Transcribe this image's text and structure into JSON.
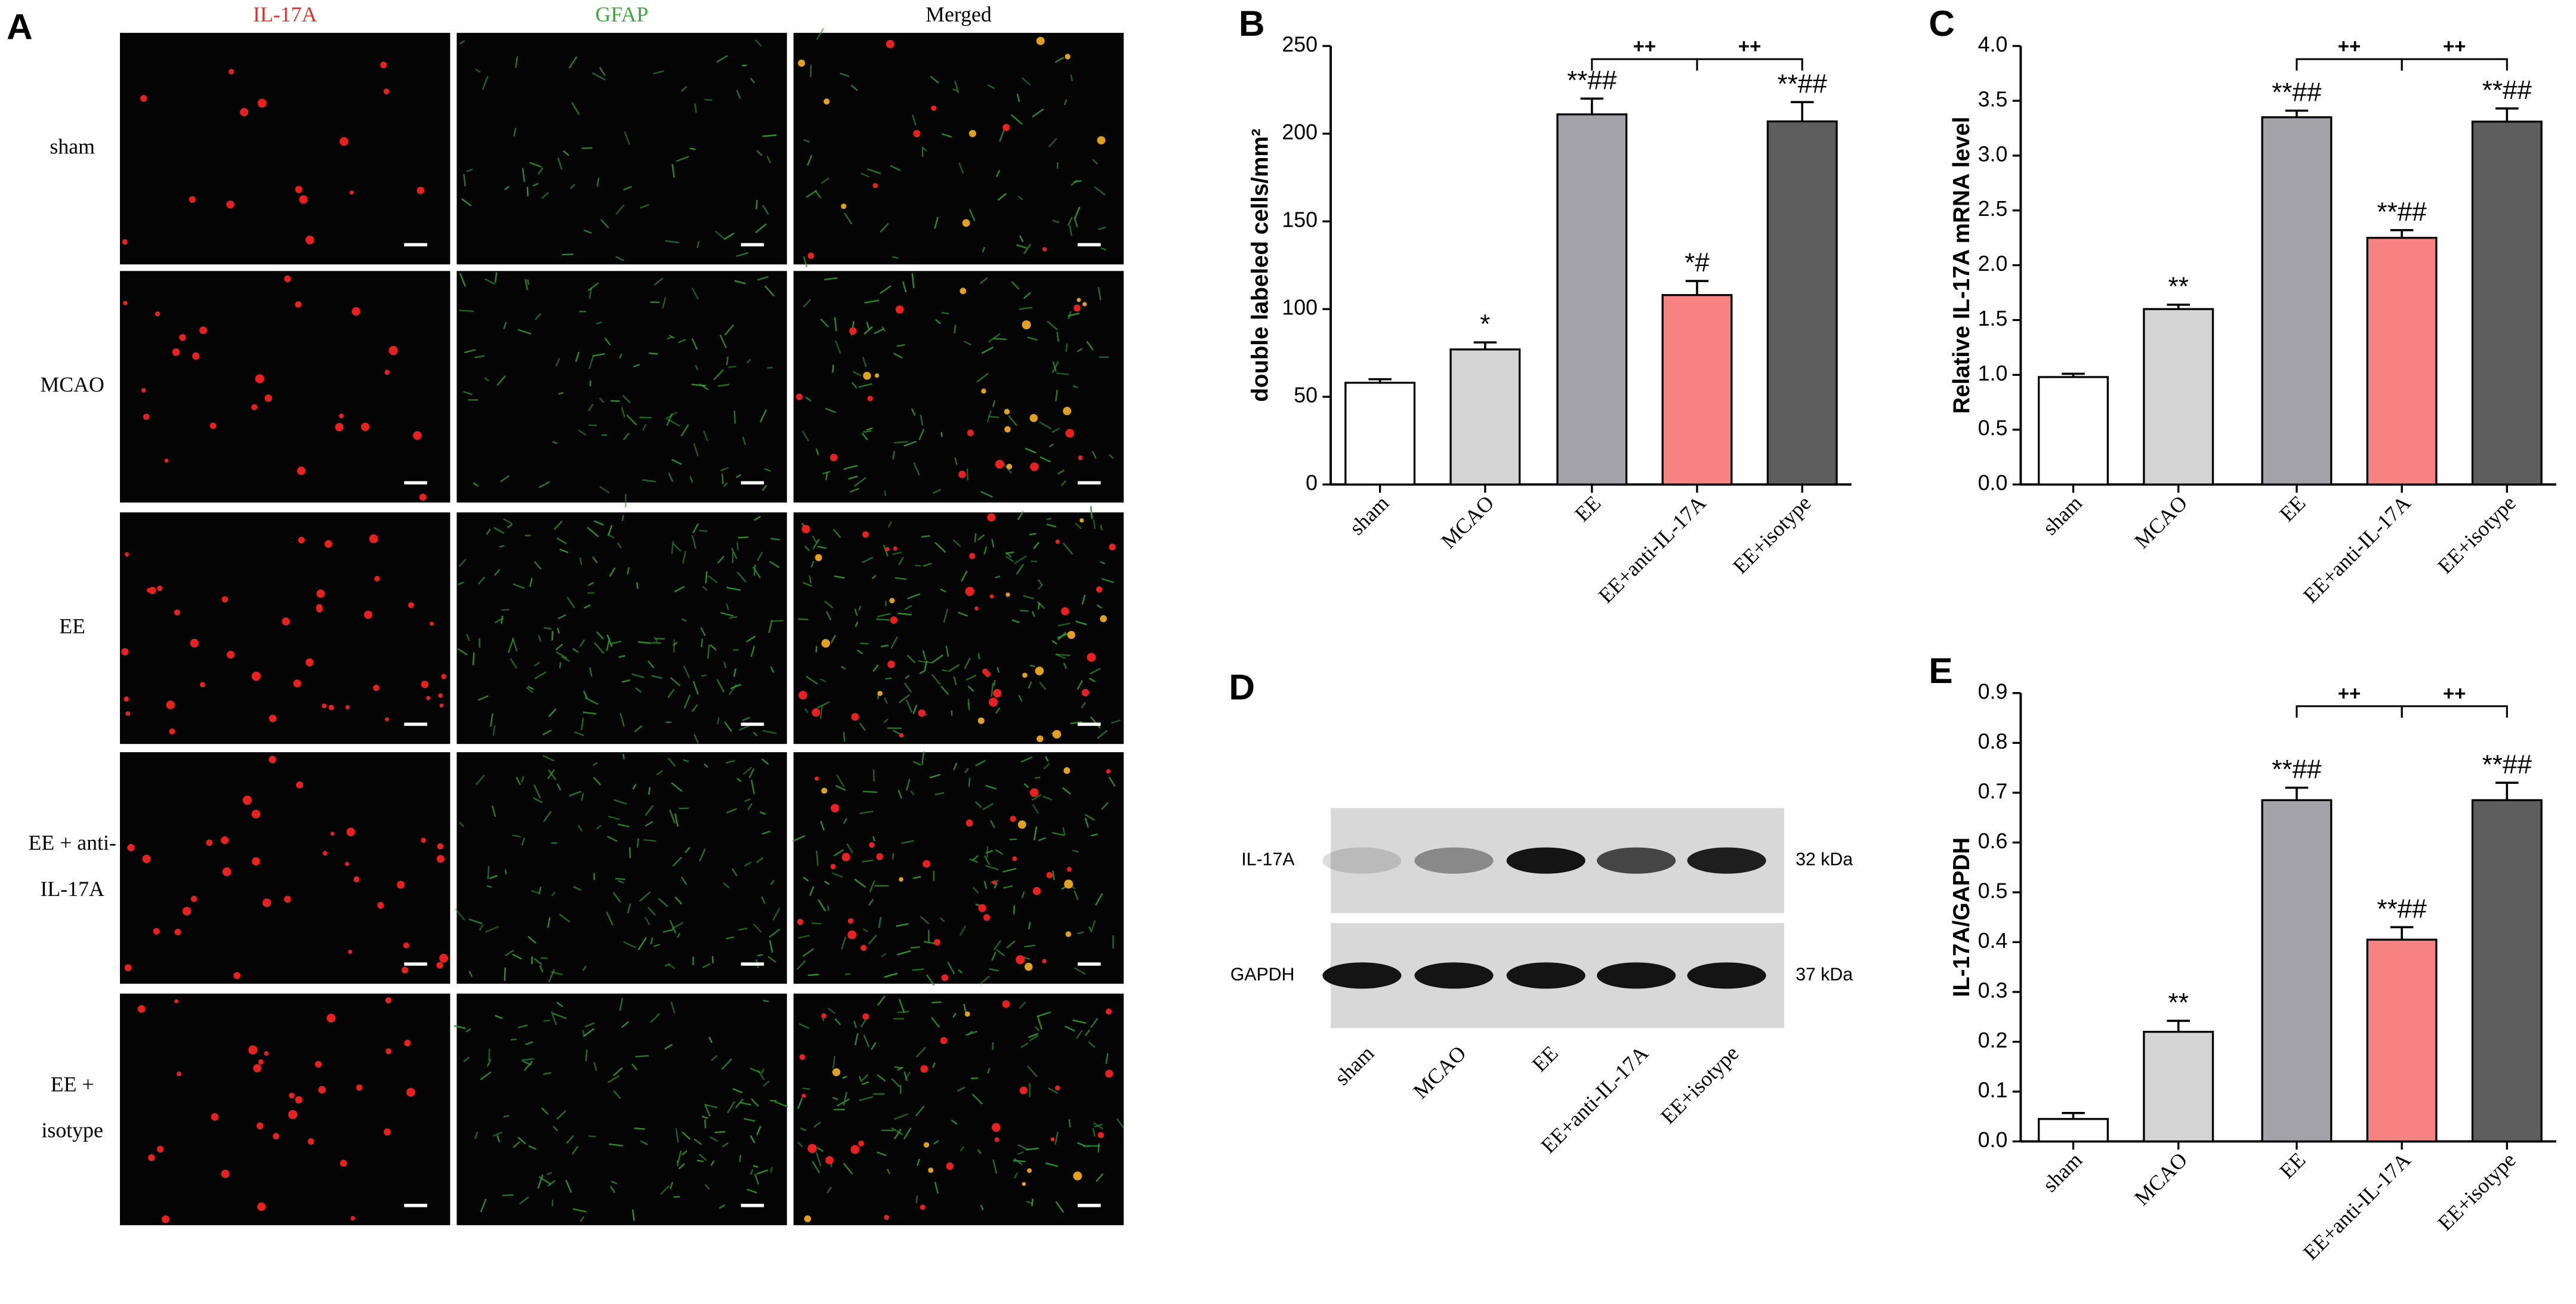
{
  "panel_a": {
    "panel": "A",
    "columns": [
      {
        "label": "IL-17A",
        "color": "#e0302a"
      },
      {
        "label": "GFAP",
        "color": "#3aa83a"
      },
      {
        "label": "Merged",
        "color": "#000000"
      }
    ],
    "rows": [
      [
        "sham"
      ],
      [
        "MCAO"
      ],
      [
        "EE"
      ],
      [
        "EE + anti-",
        "IL-17A"
      ],
      [
        "EE +",
        "isotype"
      ]
    ]
  },
  "panel_d": {
    "panel": "D",
    "blots": [
      {
        "label": "IL-17A",
        "size": "32 kDa"
      },
      {
        "label": "GAPDH",
        "size": "37 kDa"
      }
    ],
    "lanes": [
      "sham",
      "MCAO",
      "EE",
      "EE+anti-IL-17A",
      "EE+isotype"
    ]
  },
  "chart_data": [
    {
      "type": "bar",
      "panel": "B",
      "ylabel": "double labeled cells/mm²",
      "categories": [
        "sham",
        "MCAO",
        "EE",
        "EE+anti-IL-17A",
        "EE+isotype"
      ],
      "values": [
        58,
        77,
        211,
        108,
        207
      ],
      "errors": [
        2,
        4,
        9,
        8,
        11
      ],
      "colors": [
        "#ffffff",
        "#d4d4d4",
        "#a2a2a8",
        "#f78282",
        "#5e5e5e"
      ],
      "annotations": [
        null,
        "*",
        "**##",
        "*#",
        "**##"
      ],
      "brackets": [
        {
          "between": [
            "EE",
            "EE+anti-IL-17A"
          ],
          "label": "++"
        },
        {
          "between": [
            "EE+anti-IL-17A",
            "EE+isotype"
          ],
          "label": "++"
        }
      ],
      "ylim": [
        0,
        250
      ],
      "yticks": [
        0,
        50,
        100,
        150,
        200,
        250
      ]
    },
    {
      "type": "bar",
      "panel": "C",
      "ylabel": "Relative IL-17A mRNA level",
      "categories": [
        "sham",
        "MCAO",
        "EE",
        "EE+anti-IL-17A",
        "EE+isotype"
      ],
      "values": [
        0.98,
        1.6,
        3.35,
        2.25,
        3.31
      ],
      "errors": [
        0.03,
        0.04,
        0.06,
        0.07,
        0.12
      ],
      "colors": [
        "#ffffff",
        "#d4d4d4",
        "#a2a2a8",
        "#f78282",
        "#5e5e5e"
      ],
      "annotations": [
        null,
        "**",
        "**##",
        "**##",
        "**##"
      ],
      "brackets": [
        {
          "between": [
            "EE",
            "EE+anti-IL-17A"
          ],
          "label": "++"
        },
        {
          "between": [
            "EE+anti-IL-17A",
            "EE+isotype"
          ],
          "label": "++"
        }
      ],
      "ylim": [
        0,
        4
      ],
      "yticks": [
        {
          "value": 0,
          "label": "0.0"
        },
        0.5,
        {
          "value": 1,
          "label": "1.0"
        },
        1.5,
        {
          "value": 2,
          "label": "2.0"
        },
        2.5,
        {
          "value": 3,
          "label": "3.0"
        },
        3.5,
        {
          "value": 4,
          "label": "4.0"
        }
      ]
    },
    {
      "type": "bar",
      "panel": "E",
      "ylabel": "IL-17A/GAPDH",
      "categories": [
        "sham",
        "MCAO",
        "EE",
        "EE+anti-IL-17A",
        "EE+isotype"
      ],
      "values": [
        0.045,
        0.22,
        0.685,
        0.405,
        0.685
      ],
      "errors": [
        0.012,
        0.022,
        0.025,
        0.025,
        0.035
      ],
      "colors": [
        "#ffffff",
        "#d4d4d4",
        "#a2a2a8",
        "#f78282",
        "#5e5e5e"
      ],
      "annotations": [
        null,
        "**",
        "**##",
        "**##",
        "**##"
      ],
      "brackets": [
        {
          "between": [
            "EE",
            "EE+anti-IL-17A"
          ],
          "label": "++"
        },
        {
          "between": [
            "EE+anti-IL-17A",
            "EE+isotype"
          ],
          "label": "++"
        }
      ],
      "ylim": [
        0,
        0.9
      ],
      "yticks": [
        {
          "value": 0,
          "label": "0.0"
        },
        0.1,
        0.2,
        0.3,
        0.4,
        0.5,
        0.6,
        0.7,
        0.8,
        0.9
      ]
    }
  ]
}
